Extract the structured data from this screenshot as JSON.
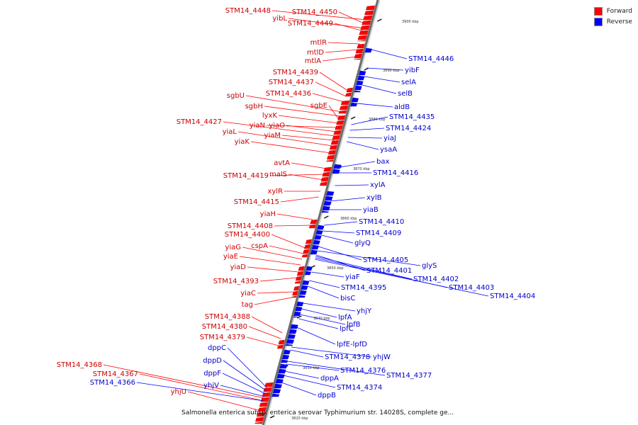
{
  "legend": {
    "forward_label": "Forward",
    "reverse_label": "Reverse",
    "forward_color": "#ff0000",
    "reverse_color": "#0000ff"
  },
  "caption": "Salmonella enterica subsp. enterica serovar Typhimurium str. 14028S, complete ge...",
  "kbp_marks": [
    "3900 kbp",
    "3890 kbp",
    "3880 kbp",
    "3870 kbp",
    "3860 kbp",
    "3850 kbp",
    "3840 kbp",
    "3830 kbp",
    "3820 kbp"
  ],
  "forward_genes": [
    "STM14_4448",
    "STM14_4450",
    "yibL",
    "STM14_4449",
    "mtlR",
    "mtlD",
    "mtlA",
    "STM14_4439",
    "STM14_4437",
    "STM14_4436",
    "sgbU",
    "sgbH",
    "sgbE",
    "lyxK",
    "yiaN",
    "yiaO",
    "STM14_4427",
    "yiaM",
    "yiaL",
    "yiaK",
    "avtA",
    "STM14_4419",
    "malS",
    "xylR",
    "STM14_4415",
    "yiaH",
    "STM14_4408",
    "STM14_4400",
    "cspA",
    "yiaG",
    "yiaE",
    "yiaD",
    "STM14_4393",
    "yiaC",
    "tag",
    "STM14_4388",
    "STM14_4380",
    "STM14_4379",
    "STM14_4368",
    "STM14_4367",
    "yhjU"
  ],
  "reverse_genes": [
    "STM14_4446",
    "yibF",
    "selA",
    "selB",
    "aldB",
    "STM14_4435",
    "STM14_4424",
    "yiaJ",
    "ysaA",
    "bax",
    "STM14_4416",
    "xylA",
    "xylB",
    "yiaB",
    "STM14_4410",
    "STM14_4409",
    "glyQ",
    "STM14_4405",
    "glyS",
    "STM14_4401",
    "STM14_4402",
    "STM14_4403",
    "STM14_4404",
    "yiaF",
    "STM14_4395",
    "bisC",
    "yhjY",
    "lpfA",
    "lpfB",
    "lpfC",
    "lpfE-lpfD",
    "STM14_4378",
    "yhjW",
    "STM14_4376",
    "STM14_4377",
    "dppA",
    "STM14_4374",
    "dppB",
    "dppC",
    "dppD",
    "dppF",
    "yhjV",
    "STM14_4366"
  ]
}
